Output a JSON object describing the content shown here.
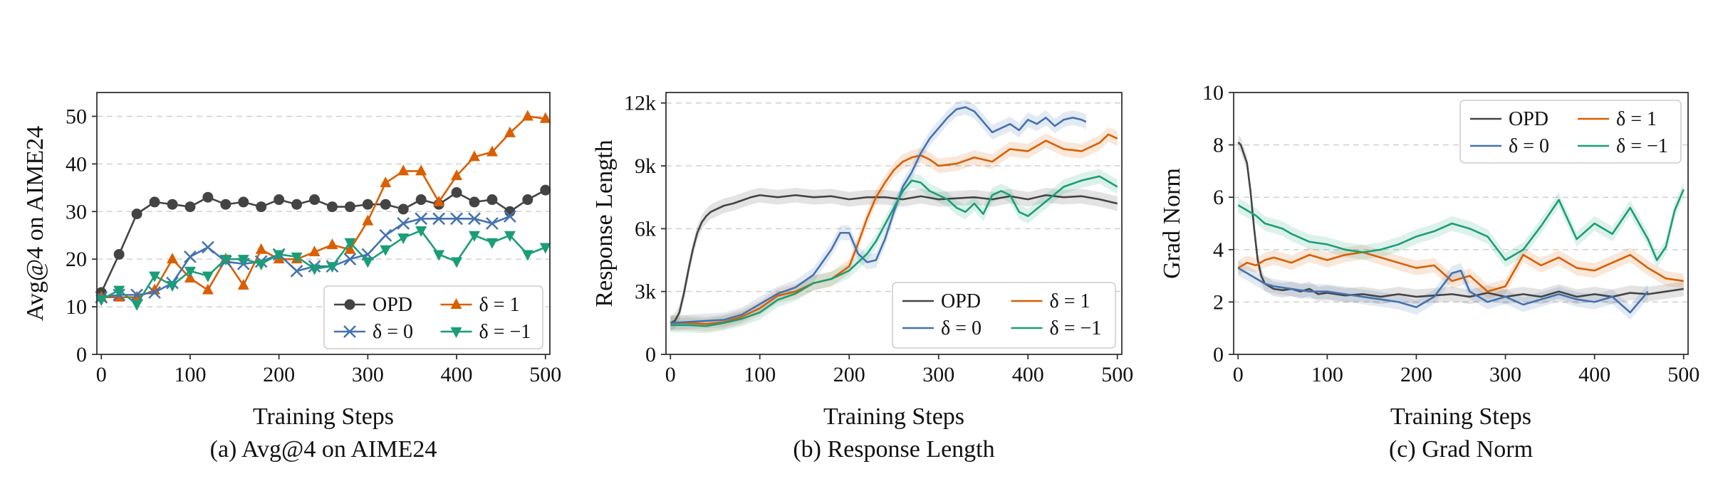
{
  "chart_data": [
    {
      "type": "line",
      "caption": "(a) Avg@4 on AIME24",
      "xlabel": "Training Steps",
      "ylabel": "Avg@4 on AIME24",
      "xlim": [
        -5,
        505
      ],
      "ylim": [
        0,
        55
      ],
      "xticks": [
        0,
        100,
        200,
        300,
        400,
        500
      ],
      "yticks": [
        0,
        10,
        20,
        30,
        40,
        50
      ],
      "xtick_labels": [
        "0",
        "100",
        "200",
        "300",
        "400",
        "500"
      ],
      "ytick_labels": [
        "0",
        "10",
        "20",
        "30",
        "40",
        "50"
      ],
      "grid": "y-dashed",
      "legend_position": "lower-right",
      "series": [
        {
          "name": "OPD",
          "color": "#444444",
          "marker": "circle",
          "x": [
            0,
            20,
            40,
            60,
            80,
            100,
            120,
            140,
            160,
            180,
            200,
            220,
            240,
            260,
            280,
            300,
            320,
            340,
            360,
            380,
            400,
            420,
            440,
            460,
            480,
            500
          ],
          "y": [
            13,
            21,
            29.5,
            32,
            31.5,
            31,
            33,
            31.5,
            32,
            31,
            32.5,
            31.5,
            32.5,
            31,
            31,
            31.5,
            31.5,
            30.5,
            32.5,
            31.5,
            34,
            32,
            32.5,
            30,
            32.5,
            34.5
          ]
        },
        {
          "name": "δ = 1",
          "color": "#d95f02",
          "marker": "triangle-up",
          "x": [
            0,
            20,
            40,
            60,
            80,
            100,
            120,
            140,
            160,
            180,
            200,
            220,
            240,
            260,
            280,
            300,
            320,
            340,
            360,
            380,
            400,
            420,
            440,
            460,
            480,
            500
          ],
          "y": [
            12,
            12,
            12,
            13.5,
            20,
            16,
            13.5,
            20,
            14.5,
            22,
            20,
            20,
            21.5,
            23,
            22,
            28,
            36,
            38.5,
            38.5,
            32,
            37.5,
            41.5,
            42.5,
            46.5,
            50,
            49.5
          ]
        },
        {
          "name": "δ = 0",
          "color": "#4472b0",
          "marker": "x",
          "x": [
            0,
            20,
            40,
            60,
            80,
            100,
            120,
            140,
            160,
            180,
            200,
            220,
            240,
            260,
            280,
            300,
            320,
            340,
            360,
            380,
            400,
            420,
            440,
            460
          ],
          "y": [
            12,
            12.5,
            12.5,
            13,
            15,
            20.5,
            22.5,
            19.5,
            19,
            19.5,
            21,
            17.5,
            18.5,
            18.5,
            20,
            21,
            25,
            27.5,
            28.5,
            28.5,
            28.5,
            28.5,
            27.5,
            29
          ]
        },
        {
          "name": "δ = −1",
          "color": "#1a9e77",
          "marker": "triangle-down",
          "x": [
            0,
            20,
            40,
            60,
            80,
            100,
            120,
            140,
            160,
            180,
            200,
            220,
            240,
            260,
            280,
            300,
            320,
            340,
            360,
            380,
            400,
            420,
            440,
            460,
            480,
            500
          ],
          "y": [
            11.5,
            13.5,
            10.5,
            16.5,
            14.5,
            17.5,
            16.5,
            20,
            20,
            19,
            21,
            20.5,
            18,
            18.5,
            23.5,
            19.5,
            22,
            24.5,
            26,
            21,
            19.5,
            25,
            23.5,
            25,
            21,
            22.5
          ]
        }
      ]
    },
    {
      "type": "line",
      "caption": "(b) Response Length",
      "xlabel": "Training Steps",
      "ylabel": "Response Length",
      "xlim": [
        -5,
        505
      ],
      "ylim": [
        0,
        12500
      ],
      "xticks": [
        0,
        100,
        200,
        300,
        400,
        500
      ],
      "yticks": [
        0,
        3000,
        6000,
        9000,
        12000
      ],
      "xtick_labels": [
        "0",
        "100",
        "200",
        "300",
        "400",
        "500"
      ],
      "ytick_labels": [
        "0",
        "3k",
        "6k",
        "9k",
        "12k"
      ],
      "grid": "y-dashed",
      "legend_position": "lower-right",
      "series": [
        {
          "name": "OPD",
          "color": "#444444",
          "x": [
            0,
            5,
            10,
            15,
            20,
            25,
            30,
            35,
            40,
            45,
            50,
            60,
            70,
            80,
            90,
            100,
            120,
            140,
            160,
            180,
            200,
            220,
            240,
            260,
            280,
            300,
            320,
            340,
            360,
            380,
            400,
            420,
            440,
            460,
            480,
            500
          ],
          "y": [
            1500,
            1600,
            2000,
            2900,
            4000,
            5000,
            5800,
            6300,
            6600,
            6800,
            6900,
            7100,
            7200,
            7350,
            7500,
            7600,
            7500,
            7600,
            7500,
            7550,
            7400,
            7500,
            7500,
            7400,
            7550,
            7400,
            7450,
            7500,
            7400,
            7550,
            7400,
            7600,
            7500,
            7550,
            7400,
            7200
          ]
        },
        {
          "name": "δ = 1",
          "color": "#d95f02",
          "x": [
            0,
            20,
            40,
            60,
            80,
            100,
            120,
            140,
            160,
            180,
            200,
            210,
            220,
            230,
            240,
            250,
            260,
            270,
            280,
            290,
            300,
            320,
            340,
            360,
            380,
            400,
            420,
            440,
            460,
            480,
            490,
            500
          ],
          "y": [
            1500,
            1500,
            1450,
            1550,
            1800,
            2200,
            2800,
            3000,
            3400,
            3600,
            4200,
            5300,
            6500,
            7500,
            8200,
            8800,
            9200,
            9400,
            9500,
            9300,
            9000,
            9100,
            9400,
            9200,
            9800,
            9700,
            10200,
            9800,
            9700,
            10100,
            10500,
            10300
          ]
        },
        {
          "name": "δ = 0",
          "color": "#4472b0",
          "x": [
            0,
            20,
            40,
            60,
            80,
            100,
            120,
            140,
            160,
            180,
            190,
            200,
            210,
            220,
            230,
            240,
            250,
            260,
            270,
            280,
            290,
            300,
            310,
            320,
            330,
            340,
            350,
            360,
            370,
            380,
            390,
            400,
            410,
            420,
            430,
            440,
            450,
            460,
            465
          ],
          "y": [
            1500,
            1550,
            1600,
            1650,
            1900,
            2400,
            2900,
            3200,
            3800,
            5000,
            5800,
            5800,
            4800,
            4400,
            4500,
            5500,
            6800,
            8000,
            8700,
            9600,
            10300,
            10800,
            11300,
            11700,
            11800,
            11600,
            11100,
            10600,
            10800,
            11000,
            10700,
            11200,
            11000,
            11300,
            10900,
            11200,
            11300,
            11200,
            11100
          ]
        },
        {
          "name": "δ = −1",
          "color": "#1a9e77",
          "x": [
            0,
            20,
            40,
            60,
            80,
            100,
            120,
            140,
            160,
            180,
            200,
            220,
            230,
            240,
            250,
            260,
            270,
            280,
            290,
            300,
            310,
            320,
            330,
            340,
            350,
            360,
            370,
            380,
            390,
            400,
            420,
            440,
            460,
            480,
            500
          ],
          "y": [
            1400,
            1400,
            1350,
            1500,
            1700,
            2000,
            2600,
            2900,
            3400,
            3600,
            4000,
            4800,
            5400,
            6200,
            7000,
            7800,
            8300,
            8200,
            7800,
            7600,
            7400,
            7000,
            6800,
            7200,
            6700,
            7600,
            7800,
            7600,
            6800,
            6600,
            7300,
            8000,
            8300,
            8500,
            8000
          ]
        }
      ]
    },
    {
      "type": "line",
      "caption": "(c) Grad Norm",
      "xlabel": "Training Steps",
      "ylabel": "Grad Norm",
      "xlim": [
        -5,
        505
      ],
      "ylim": [
        0,
        10
      ],
      "xticks": [
        0,
        100,
        200,
        300,
        400,
        500
      ],
      "yticks": [
        0,
        2,
        4,
        6,
        8,
        10
      ],
      "xtick_labels": [
        "0",
        "100",
        "200",
        "300",
        "400",
        "500"
      ],
      "ytick_labels": [
        "0",
        "2",
        "4",
        "6",
        "8",
        "10"
      ],
      "grid": "y-dashed",
      "legend_position": "upper-right",
      "series": [
        {
          "name": "OPD",
          "color": "#444444",
          "x": [
            0,
            3,
            6,
            10,
            14,
            18,
            22,
            26,
            30,
            35,
            40,
            50,
            60,
            70,
            80,
            90,
            100,
            120,
            140,
            160,
            180,
            200,
            220,
            240,
            260,
            280,
            300,
            320,
            340,
            360,
            380,
            400,
            420,
            440,
            460,
            480,
            500
          ],
          "y": [
            8.1,
            8.0,
            7.7,
            7.3,
            6.2,
            4.8,
            3.6,
            3.0,
            2.7,
            2.6,
            2.5,
            2.45,
            2.5,
            2.4,
            2.5,
            2.3,
            2.35,
            2.25,
            2.3,
            2.2,
            2.3,
            2.2,
            2.25,
            2.3,
            2.2,
            2.35,
            2.2,
            2.3,
            2.2,
            2.4,
            2.2,
            2.3,
            2.2,
            2.35,
            2.3,
            2.4,
            2.5
          ]
        },
        {
          "name": "δ = 1",
          "color": "#d95f02",
          "x": [
            0,
            10,
            20,
            30,
            40,
            60,
            80,
            100,
            120,
            140,
            160,
            180,
            200,
            220,
            240,
            260,
            280,
            300,
            320,
            340,
            360,
            380,
            400,
            420,
            440,
            460,
            480,
            500
          ],
          "y": [
            3.3,
            3.5,
            3.4,
            3.6,
            3.7,
            3.5,
            3.8,
            3.6,
            3.8,
            3.9,
            3.7,
            3.5,
            3.3,
            3.4,
            2.8,
            3.0,
            2.4,
            2.6,
            3.8,
            3.4,
            3.7,
            3.3,
            3.2,
            3.5,
            3.8,
            3.3,
            2.9,
            2.8
          ]
        },
        {
          "name": "δ = 0",
          "color": "#4472b0",
          "x": [
            0,
            10,
            20,
            30,
            40,
            60,
            80,
            100,
            120,
            140,
            160,
            180,
            200,
            220,
            240,
            250,
            260,
            280,
            300,
            320,
            340,
            360,
            380,
            400,
            420,
            440,
            460
          ],
          "y": [
            3.3,
            3.1,
            2.9,
            2.7,
            2.6,
            2.5,
            2.4,
            2.4,
            2.3,
            2.2,
            2.1,
            2.0,
            1.8,
            2.2,
            3.1,
            3.2,
            2.4,
            2.0,
            2.2,
            1.9,
            2.1,
            2.3,
            2.1,
            2.0,
            2.2,
            1.6,
            2.4
          ]
        },
        {
          "name": "δ = −1",
          "color": "#1a9e77",
          "x": [
            0,
            10,
            20,
            30,
            40,
            50,
            60,
            80,
            100,
            120,
            140,
            160,
            180,
            200,
            220,
            240,
            260,
            280,
            300,
            320,
            340,
            360,
            380,
            400,
            420,
            440,
            460,
            470,
            480,
            490,
            500
          ],
          "y": [
            5.7,
            5.5,
            5.3,
            5.0,
            4.9,
            4.8,
            4.6,
            4.3,
            4.2,
            4.0,
            3.9,
            4.0,
            4.2,
            4.5,
            4.7,
            5.0,
            4.8,
            4.5,
            3.6,
            4.0,
            4.9,
            5.9,
            4.4,
            5.0,
            4.6,
            5.6,
            4.4,
            3.6,
            4.1,
            5.5,
            6.3
          ]
        }
      ]
    }
  ]
}
